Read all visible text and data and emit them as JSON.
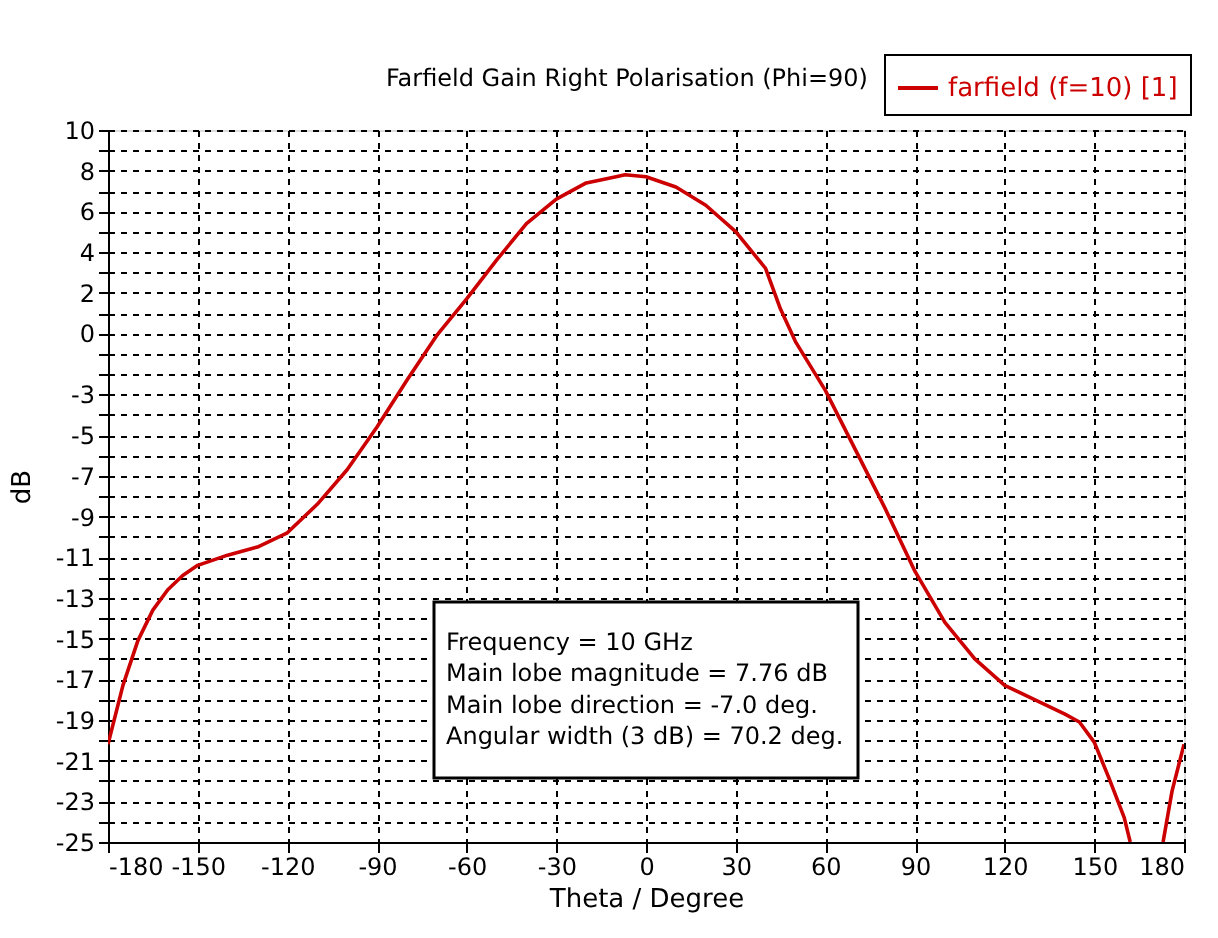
{
  "chart_data": {
    "type": "line",
    "title": "Farfield Gain Right Polarisation (Phi=90)",
    "xlabel": "Theta / Degree",
    "ylabel": "dB",
    "x": [
      -180,
      -175,
      -170,
      -165,
      -160,
      -155,
      -150,
      -140,
      -130,
      -120,
      -110,
      -100,
      -90,
      -80,
      -70,
      -60,
      -50,
      -40,
      -30,
      -20,
      -10,
      -7,
      0,
      10,
      20,
      30,
      40,
      45,
      50,
      60,
      70,
      80,
      90,
      100,
      110,
      120,
      130,
      140,
      145,
      150,
      155,
      160,
      162,
      168,
      173,
      176,
      180
    ],
    "series": [
      {
        "name": "farfield (f=10) [1]",
        "color": "#cc0000",
        "values": [
          -20.2,
          -17.3,
          -15.1,
          -13.6,
          -12.6,
          -11.9,
          -11.4,
          -10.9,
          -10.5,
          -9.8,
          -8.4,
          -6.7,
          -4.6,
          -2.3,
          -0.1,
          1.7,
          3.6,
          5.4,
          6.6,
          7.4,
          7.7,
          7.8,
          7.7,
          7.2,
          6.3,
          5.0,
          3.2,
          1.2,
          -0.4,
          -2.8,
          -5.7,
          -8.6,
          -11.7,
          -14.2,
          -16.0,
          -17.3,
          -18.0,
          -18.7,
          -19.1,
          -20.1,
          -21.9,
          -23.8,
          -25,
          null,
          -25,
          -22.5,
          -20.2
        ]
      }
    ],
    "xlim": [
      -180,
      180
    ],
    "xticks": [
      -180,
      -150,
      -120,
      -90,
      -60,
      -30,
      0,
      30,
      60,
      90,
      120,
      150,
      180
    ],
    "ylim": [
      -25,
      10
    ],
    "yticks": [
      {
        "value": -25,
        "label": "-25"
      },
      {
        "value": -24,
        "label": null
      },
      {
        "value": -23,
        "label": "-23"
      },
      {
        "value": -22,
        "label": null
      },
      {
        "value": -21,
        "label": "-21"
      },
      {
        "value": -20,
        "label": null
      },
      {
        "value": -19,
        "label": "-19"
      },
      {
        "value": -18,
        "label": null
      },
      {
        "value": -17,
        "label": "-17"
      },
      {
        "value": -16,
        "label": null
      },
      {
        "value": -15,
        "label": "-15"
      },
      {
        "value": -14,
        "label": null
      },
      {
        "value": -13,
        "label": "-13"
      },
      {
        "value": -12,
        "label": null
      },
      {
        "value": -11,
        "label": "-11"
      },
      {
        "value": -10,
        "label": null
      },
      {
        "value": -9,
        "label": "-9"
      },
      {
        "value": -8,
        "label": null
      },
      {
        "value": -7,
        "label": "-7"
      },
      {
        "value": -6,
        "label": null
      },
      {
        "value": -5,
        "label": "-5"
      },
      {
        "value": -4,
        "label": null
      },
      {
        "value": -3,
        "label": "-3"
      },
      {
        "value": -2,
        "label": null
      },
      {
        "value": -1,
        "label": null
      },
      {
        "value": 0,
        "label": "0"
      },
      {
        "value": 1,
        "label": null
      },
      {
        "value": 2,
        "label": "2"
      },
      {
        "value": 3,
        "label": null
      },
      {
        "value": 4,
        "label": "4"
      },
      {
        "value": 5,
        "label": null
      },
      {
        "value": 6,
        "label": "6"
      },
      {
        "value": 7,
        "label": null
      },
      {
        "value": 8,
        "label": "8"
      },
      {
        "value": 9,
        "label": null
      },
      {
        "value": 10,
        "label": "10"
      }
    ],
    "grid": true,
    "legend": "top right",
    "marker": "none",
    "line_style": "solid",
    "annotations": [
      "Frequency = 10 GHz",
      "Main lobe magnitude = 7.76 dB",
      "Main lobe direction = -7.0 deg.",
      "Angular width (3 dB) = 70.2 deg."
    ]
  }
}
